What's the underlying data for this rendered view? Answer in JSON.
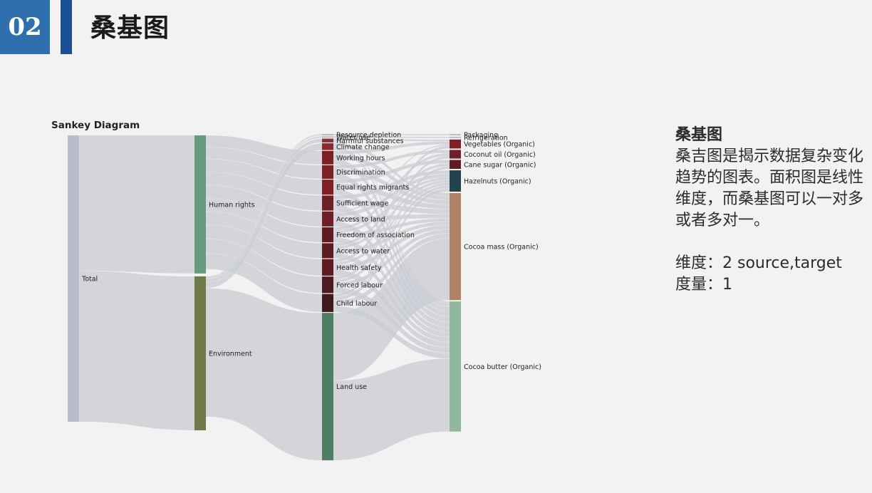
{
  "header": {
    "section_number": "02",
    "title": "桑基图"
  },
  "panel": {
    "heading": "桑基图",
    "body": "桑吉图是揭示数据复杂变化趋势的图表。面积图是线性维度，而桑基图可以一对多或者多对一。",
    "dimension": "维度：2 source,target",
    "measure": "度量：1"
  },
  "chart_data": {
    "type": "sankey",
    "title": "Sankey Diagram",
    "columns": [
      [
        "Total"
      ],
      [
        "Human rights",
        "Environment"
      ],
      [
        "Resource depletion",
        "Water use",
        "Harmful substances",
        "Climate change",
        "Working hours",
        "Discrimination",
        "Equal rights migrants",
        "Sufficient wage",
        "Access to land",
        "Freedom of association",
        "Access to water",
        "Health safety",
        "Forced labour",
        "Child labour",
        "Land use"
      ],
      [
        "Packaging",
        "Refrigeration",
        "Vegetables (Organic)",
        "Coconut oil (Organic)",
        "Cane sugar (Organic)",
        "Hazelnuts (Organic)",
        "Cocoa mass (Organic)",
        "Cocoa butter (Organic)"
      ]
    ],
    "node_colors": {
      "Total": "#b9bdc9",
      "Human rights": "#6a9a7d",
      "Environment": "#6f7a48",
      "Resource depletion": "#b9bdc9",
      "Water use": "#b9bdc9",
      "Harmful substances": "#8e2f36",
      "Climate change": "#8a2a30",
      "Working hours": "#7d1f25",
      "Discrimination": "#7d1f25",
      "Equal rights migrants": "#7d1f25",
      "Sufficient wage": "#6e1f27",
      "Access to land": "#6e1f27",
      "Freedom of association": "#5e1c22",
      "Access to water": "#5e1c22",
      "Health safety": "#5e1c22",
      "Forced labour": "#4f1a1f",
      "Child labour": "#3f1a1c",
      "Land use": "#4f7f63",
      "Packaging": "#b9bdc9",
      "Refrigeration": "#b9bdc9",
      "Vegetables (Organic)": "#7d1f25",
      "Coconut oil (Organic)": "#6e1f27",
      "Cane sugar (Organic)": "#5e1c22",
      "Hazelnuts (Organic)": "#23434f",
      "Cocoa mass (Organic)": "#b08068",
      "Cocoa butter (Organic)": "#8fb89c"
    },
    "link_color": "#c8cbd2",
    "links": [
      [
        "Total",
        "Human rights",
        0.473
      ],
      [
        "Total",
        "Environment",
        0.527
      ],
      [
        "Human rights",
        "Working hours",
        0.0404
      ],
      [
        "Human rights",
        "Discrimination",
        0.0404
      ],
      [
        "Human rights",
        "Equal rights migrants",
        0.0449
      ],
      [
        "Human rights",
        "Sufficient wage",
        0.0449
      ],
      [
        "Human rights",
        "Access to land",
        0.0449
      ],
      [
        "Human rights",
        "Freedom of association",
        0.0449
      ],
      [
        "Human rights",
        "Access to water",
        0.0449
      ],
      [
        "Human rights",
        "Health safety",
        0.0494
      ],
      [
        "Human rights",
        "Forced labour",
        0.0494
      ],
      [
        "Human rights",
        "Child labour",
        0.0539
      ],
      [
        "Environment",
        "Resource depletion",
        0.0045
      ],
      [
        "Environment",
        "Water use",
        0.0045
      ],
      [
        "Environment",
        "Harmful substances",
        0.0112
      ],
      [
        "Environment",
        "Climate change",
        0.0202
      ],
      [
        "Environment",
        "Land use",
        0.4404
      ],
      [
        "Resource depletion",
        "Packaging",
        0.0045
      ],
      [
        "Water use",
        "Refrigeration",
        0.0045
      ],
      [
        "Harmful substances",
        "Vegetables (Organic)",
        0.0056
      ],
      [
        "Harmful substances",
        "Cocoa butter (Organic)",
        0.0056
      ],
      [
        "Climate change",
        "Cocoa mass (Organic)",
        0.0101
      ],
      [
        "Climate change",
        "Cocoa butter (Organic)",
        0.0101
      ],
      [
        "Working hours",
        "Vegetables (Organic)",
        0.0101
      ],
      [
        "Working hours",
        "Cocoa mass (Organic)",
        0.0135
      ],
      [
        "Working hours",
        "Cocoa butter (Organic)",
        0.0168
      ],
      [
        "Discrimination",
        "Coconut oil (Organic)",
        0.0101
      ],
      [
        "Discrimination",
        "Cocoa mass (Organic)",
        0.0135
      ],
      [
        "Discrimination",
        "Cocoa butter (Organic)",
        0.0168
      ],
      [
        "Equal rights migrants",
        "Cane sugar (Organic)",
        0.0112
      ],
      [
        "Equal rights migrants",
        "Cocoa mass (Organic)",
        0.0157
      ],
      [
        "Equal rights migrants",
        "Cocoa butter (Organic)",
        0.018
      ],
      [
        "Sufficient wage",
        "Hazelnuts (Organic)",
        0.0112
      ],
      [
        "Sufficient wage",
        "Cocoa mass (Organic)",
        0.0157
      ],
      [
        "Sufficient wage",
        "Cocoa butter (Organic)",
        0.018
      ],
      [
        "Access to land",
        "Vegetables (Organic)",
        0.0045
      ],
      [
        "Access to land",
        "Hazelnuts (Organic)",
        0.0112
      ],
      [
        "Access to land",
        "Cocoa mass (Organic)",
        0.0135
      ],
      [
        "Access to land",
        "Cocoa butter (Organic)",
        0.0157
      ],
      [
        "Freedom of association",
        "Coconut oil (Organic)",
        0.009
      ],
      [
        "Freedom of association",
        "Hazelnuts (Organic)",
        0.009
      ],
      [
        "Freedom of association",
        "Cocoa mass (Organic)",
        0.0112
      ],
      [
        "Freedom of association",
        "Cocoa butter (Organic)",
        0.0157
      ],
      [
        "Access to water",
        "Cane sugar (Organic)",
        0.009
      ],
      [
        "Access to water",
        "Hazelnuts (Organic)",
        0.009
      ],
      [
        "Access to water",
        "Cocoa mass (Organic)",
        0.0112
      ],
      [
        "Access to water",
        "Cocoa butter (Organic)",
        0.0157
      ],
      [
        "Health safety",
        "Vegetables (Organic)",
        0.009
      ],
      [
        "Health safety",
        "Hazelnuts (Organic)",
        0.009
      ],
      [
        "Health safety",
        "Cocoa mass (Organic)",
        0.0135
      ],
      [
        "Health safety",
        "Cocoa butter (Organic)",
        0.018
      ],
      [
        "Forced labour",
        "Coconut oil (Organic)",
        0.009
      ],
      [
        "Forced labour",
        "Hazelnuts (Organic)",
        0.009
      ],
      [
        "Forced labour",
        "Cocoa mass (Organic)",
        0.0135
      ],
      [
        "Forced labour",
        "Cocoa butter (Organic)",
        0.018
      ],
      [
        "Child labour",
        "Cane sugar (Organic)",
        0.009
      ],
      [
        "Child labour",
        "Hazelnuts (Organic)",
        0.0112
      ],
      [
        "Child labour",
        "Cocoa mass (Organic)",
        0.0157
      ],
      [
        "Child labour",
        "Cocoa butter (Organic)",
        0.018
      ],
      [
        "Land use",
        "Cocoa mass (Organic)",
        0.2022
      ],
      [
        "Land use",
        "Cocoa butter (Organic)",
        0.2382
      ]
    ]
  }
}
